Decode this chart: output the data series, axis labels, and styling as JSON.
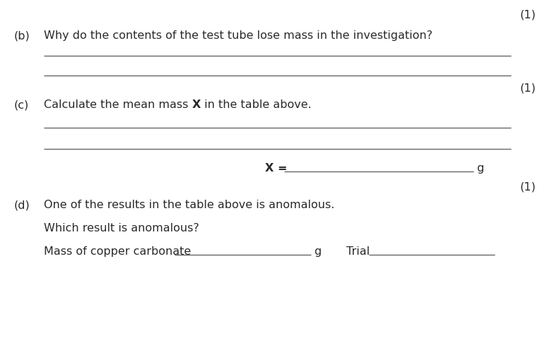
{
  "bg_color": "#ffffff",
  "text_color": "#2a2a2a",
  "line_color": "#666666",
  "top_mark": "(1)",
  "b_label": "(b)",
  "b_question": "Why do the contents of the test tube lose mass in the investigation?",
  "b_mark": "(1)",
  "c_label": "(c)",
  "c_q_pre": "Calculate the mean mass ",
  "c_q_bold": "X",
  "c_q_post": " in the table above.",
  "c_x_label": "X = ",
  "c_x_unit": "g",
  "c_mark": "(1)",
  "d_label": "(d)",
  "d_line1": "One of the results in the table above is anomalous.",
  "d_line2": "Which result is anomalous?",
  "d_label1": "Mass of copper carbonate",
  "d_unit1": "g",
  "d_label2": "Trial",
  "fs": 11.5
}
